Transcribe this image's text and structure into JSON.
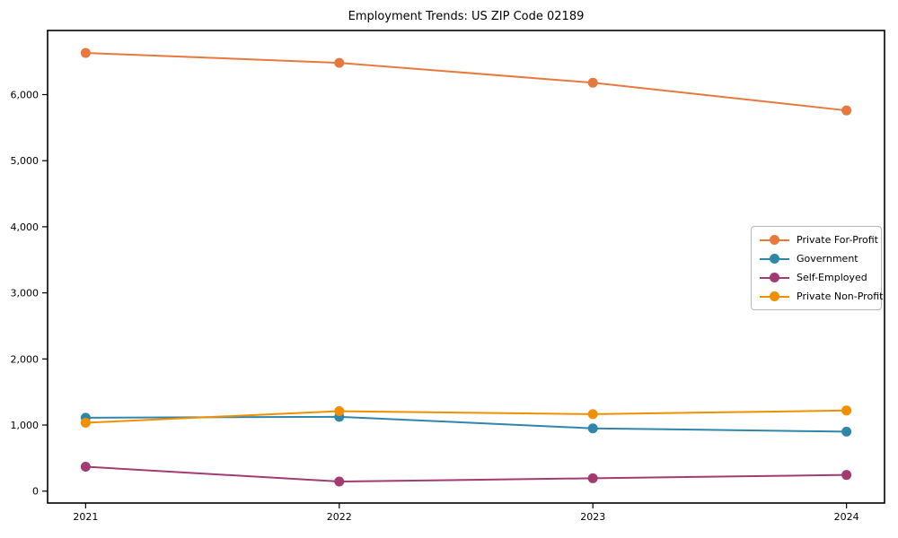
{
  "title": "Employment Trends: US ZIP Code 02189",
  "chart_data": {
    "type": "line",
    "title": "Employment Trends: US ZIP Code 02189",
    "categories": [
      "2021",
      "2022",
      "2023",
      "2024"
    ],
    "series": [
      {
        "name": "Private For-Profit",
        "color": "#E8793E",
        "values": [
          6630,
          6480,
          6180,
          5760
        ]
      },
      {
        "name": "Government",
        "color": "#2E86AB",
        "values": [
          1110,
          1125,
          950,
          900
        ]
      },
      {
        "name": "Self-Employed",
        "color": "#A23B72",
        "values": [
          370,
          145,
          195,
          245
        ]
      },
      {
        "name": "Private Non-Profit",
        "color": "#F18F01",
        "values": [
          1035,
          1210,
          1165,
          1220
        ]
      }
    ],
    "xlabel": "",
    "ylabel": "",
    "ylim": [
      -180,
      6970
    ],
    "yticks": [
      0,
      1000,
      2000,
      3000,
      4000,
      5000,
      6000
    ],
    "ytick_labels": [
      "0",
      "1,000",
      "2,000",
      "3,000",
      "4,000",
      "5,000",
      "6,000"
    ],
    "grid": false,
    "legend_position": "center right",
    "marker": "circle",
    "axis_color": "#000000"
  }
}
